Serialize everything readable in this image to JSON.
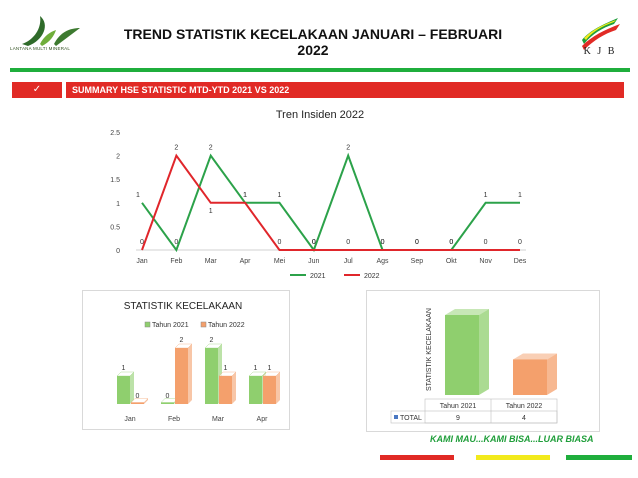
{
  "header": {
    "title": "TREND STATISTIK KECELAKAAN JANUARI – FEBRUARI  2022",
    "left_logo_text": "LANTANA MULTI MINERAL",
    "right_logo_text": "K J B"
  },
  "section": {
    "check_icon": "check-icon",
    "summary_label": "SUMMARY HSE STATISTIC MTD-YTD 2021 VS 2022"
  },
  "colors": {
    "accent_red": "#e12a25",
    "accent_green": "#1fae3c",
    "accent_yellow": "#f2ea1c",
    "series_2021": "#2ca24a",
    "series_2022": "#e0262b",
    "bar_2021": "#8fcf6e",
    "bar_2022": "#f4a06c"
  },
  "slogan": "KAMI MAU...KAMI BISA...LUAR BIASA",
  "chart_data": [
    {
      "type": "line",
      "title": "Tren Insiden 2022",
      "categories": [
        "Jan",
        "Feb",
        "Mar",
        "Apr",
        "Mei",
        "Jun",
        "Jul",
        "Ags",
        "Sep",
        "Okt",
        "Nov",
        "Des"
      ],
      "series": [
        {
          "name": "2021",
          "values": [
            1,
            0,
            2,
            1,
            1,
            0,
            2,
            0,
            0,
            0,
            1,
            1
          ]
        },
        {
          "name": "2022",
          "values": [
            0,
            2,
            1,
            1,
            0,
            0,
            0,
            0,
            0,
            0,
            0,
            0
          ]
        }
      ],
      "ylim": [
        0,
        2.5
      ],
      "yticks": [
        "0",
        "0.5",
        "1",
        "1.5",
        "2",
        "2.5"
      ],
      "legend": "bottom",
      "grid": false
    },
    {
      "type": "bar",
      "title": "STATISTIK KECELAKAAN",
      "categories": [
        "Jan",
        "Feb",
        "Mar",
        "Apr"
      ],
      "series": [
        {
          "name": "Tahun 2021",
          "values": [
            1,
            0,
            2,
            1
          ]
        },
        {
          "name": "Tahun 2022",
          "values": [
            0,
            2,
            1,
            1
          ]
        }
      ],
      "legend": "top",
      "style": "3d"
    },
    {
      "type": "bar",
      "ylabel": "STATISTIK KECELAKAAN",
      "categories": [
        "Tahun 2021",
        "Tahun 2022"
      ],
      "series": [
        {
          "name": "TOTAL",
          "values": [
            9,
            4
          ]
        }
      ],
      "table": {
        "row_label": "TOTAL",
        "values": [
          "9",
          "4"
        ]
      },
      "style": "3d"
    }
  ]
}
